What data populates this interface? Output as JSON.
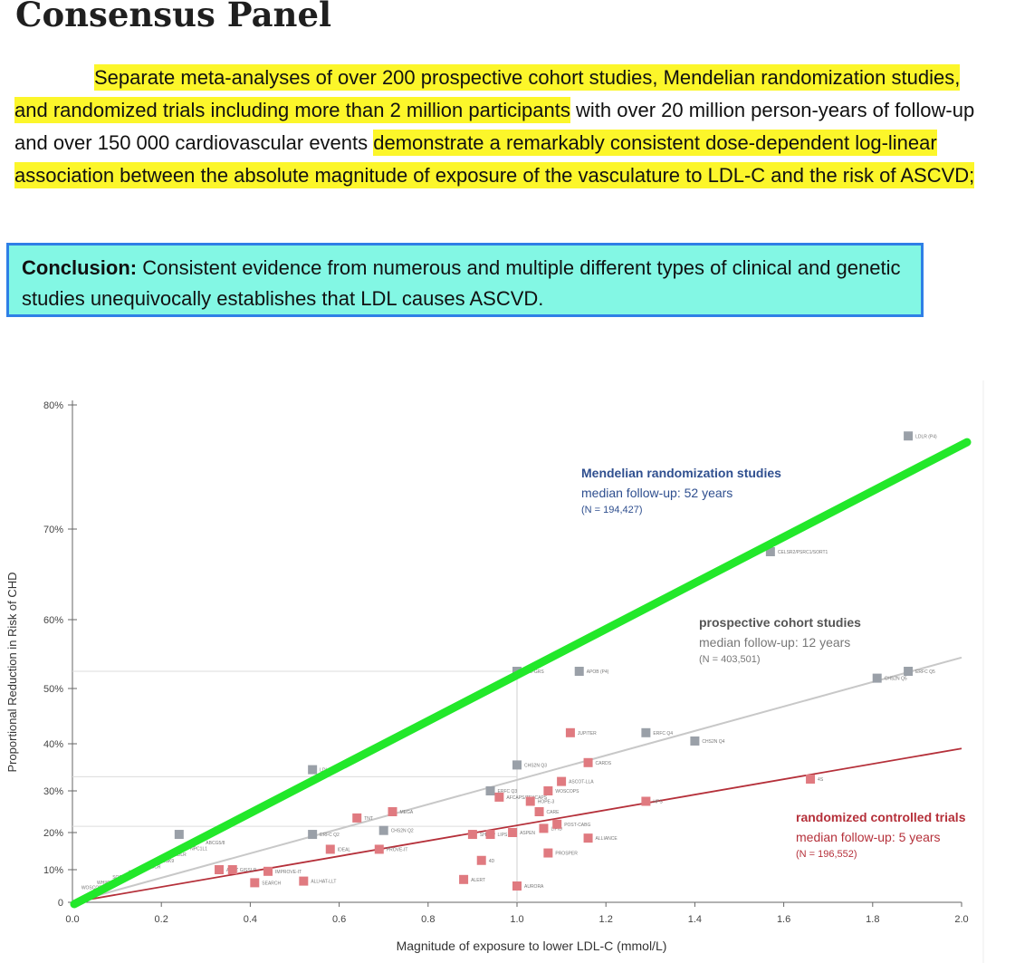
{
  "title": "Consensus Panel",
  "paragraph": {
    "seg1": "Separate meta-analyses of over 200 prospective cohort studies, Mendelian randomization studies, and randomized trials including more than 2 million participants",
    "seg2": " with over 20 million person-years of follow-up and over 150 000 cardiovascular events ",
    "seg3": "demonstrate a remarkably consistent dose-dependent log-linear association between the absolute magnitude of exposure of the vasculature to LDL-C and the risk of ASCVD;"
  },
  "conclusion": {
    "label": "Conclusion:",
    "text": " Consistent evidence from numerous and multiple different types of clinical and genetic studies unequivocally establishes that LDL causes ASCVD."
  },
  "colors": {
    "highlight": "#fcf62a",
    "box_bg": "#83f7e4",
    "box_border": "#2f7fe6",
    "green_line": "#22e82a",
    "mendelian": "#2f4f8f",
    "cohort": "#a8a8a8",
    "rct": "#b5303a",
    "rct_point": "#e07a80",
    "grey_point": "#9aa0a8"
  },
  "chart_data": {
    "type": "scatter",
    "xlabel": "Magnitude of exposure to lower LDL-C (mmol/L)",
    "ylabel": "Proportional Reduction in Risk of CHD",
    "xlim": [
      0,
      2.0
    ],
    "ylim": [
      0,
      80
    ],
    "x_ticks": [
      0.0,
      0.2,
      0.4,
      0.6,
      0.8,
      1.0,
      1.2,
      1.4,
      1.6,
      1.8,
      2.0
    ],
    "x_tick_labels": [
      "0.0",
      "0.2",
      "0.4",
      "0.6",
      "0.8",
      "1.0",
      "1.2",
      "1.4",
      "1.6",
      "1.8",
      "2.0"
    ],
    "y_ticks": [
      0,
      10,
      20,
      30,
      40,
      50,
      60,
      70,
      80
    ],
    "y_tick_labels": [
      "0",
      "10%",
      "20%",
      "30%",
      "40%",
      "50%",
      "60%",
      "70%",
      "80%"
    ],
    "series": [
      {
        "name": "Mendelian randomization studies",
        "line_label": "Mendelian randomization studies",
        "line_sub1": "median follow-up: 52 years",
        "line_sub2": "(N = 194,427)",
        "trend": [
          [
            0.0,
            0.0
          ],
          [
            2.0,
            77.0
          ]
        ],
        "points": [
          {
            "x": 0.24,
            "y": 19.5,
            "label": ""
          },
          {
            "x": 0.54,
            "y": 34.5,
            "label": "LDL-GRS"
          },
          {
            "x": 1.0,
            "y": 52.5,
            "label": "LDL-GRS"
          },
          {
            "x": 1.57,
            "y": 67.5,
            "label": "CELSR2/PSRC1/SORT1"
          },
          {
            "x": 1.88,
            "y": 77.5,
            "label": "LDLR (P4)"
          }
        ]
      },
      {
        "name": "prospective cohort studies",
        "line_label": "prospective cohort studies",
        "line_sub1": "median follow-up: 12 years",
        "line_sub2": "(N = 403,501)",
        "trend": [
          [
            0.0,
            0.0
          ],
          [
            2.0,
            54.5
          ]
        ],
        "points": [
          {
            "x": 0.54,
            "y": 19.5,
            "label": "ERFC Q2"
          },
          {
            "x": 0.7,
            "y": 20.5,
            "label": "CHS2N Q2"
          },
          {
            "x": 0.94,
            "y": 30.0,
            "label": "ERFC Q3"
          },
          {
            "x": 1.0,
            "y": 35.5,
            "label": "CHS2N Q3"
          },
          {
            "x": 1.14,
            "y": 52.5,
            "label": "APOB (P4)"
          },
          {
            "x": 1.29,
            "y": 42.0,
            "label": "ERFC Q4"
          },
          {
            "x": 1.4,
            "y": 40.5,
            "label": "CHS2N Q4"
          },
          {
            "x": 1.81,
            "y": 51.5,
            "label": "CHS2N Q5"
          },
          {
            "x": 1.88,
            "y": 52.5,
            "label": "ERFC Q5"
          }
        ]
      },
      {
        "name": "randomized controlled trials",
        "line_label": "randomized controlled trials",
        "line_sub1": "median follow-up: 5 years",
        "line_sub2": "(N = 196,552)",
        "trend": [
          [
            0.0,
            0.0
          ],
          [
            2.0,
            39.0
          ]
        ],
        "points": [
          {
            "x": 0.33,
            "y": 10.0,
            "label": "A to Z"
          },
          {
            "x": 0.36,
            "y": 10.0,
            "label": "GISSI-P"
          },
          {
            "x": 0.41,
            "y": 6.0,
            "label": "SEARCH"
          },
          {
            "x": 0.44,
            "y": 9.5,
            "label": "IMPROVE-IT"
          },
          {
            "x": 0.52,
            "y": 6.5,
            "label": "ALLHAT-LLT"
          },
          {
            "x": 0.58,
            "y": 15.5,
            "label": "IDEAL"
          },
          {
            "x": 0.64,
            "y": 23.5,
            "label": "TNT"
          },
          {
            "x": 0.69,
            "y": 15.5,
            "label": "PROVE-IT"
          },
          {
            "x": 0.72,
            "y": 25.0,
            "label": "MEGA"
          },
          {
            "x": 0.88,
            "y": 7.0,
            "label": "ALERT"
          },
          {
            "x": 0.9,
            "y": 19.5,
            "label": "SHARP"
          },
          {
            "x": 0.92,
            "y": 12.5,
            "label": "4D"
          },
          {
            "x": 0.94,
            "y": 19.5,
            "label": "LIPS"
          },
          {
            "x": 0.96,
            "y": 28.5,
            "label": "AFCAPS/TEXCAPS"
          },
          {
            "x": 0.99,
            "y": 20.0,
            "label": "ASPEN"
          },
          {
            "x": 1.0,
            "y": 5.0,
            "label": "AURORA"
          },
          {
            "x": 1.03,
            "y": 27.5,
            "label": "HOPE-3"
          },
          {
            "x": 1.05,
            "y": 25.0,
            "label": "CARE"
          },
          {
            "x": 1.06,
            "y": 21.0,
            "label": "LIPID"
          },
          {
            "x": 1.07,
            "y": 30.0,
            "label": "WOSCOPS"
          },
          {
            "x": 1.07,
            "y": 14.5,
            "label": "PROSPER"
          },
          {
            "x": 1.09,
            "y": 22.0,
            "label": "POST-CABG"
          },
          {
            "x": 1.1,
            "y": 32.0,
            "label": "ASCOT-LLA"
          },
          {
            "x": 1.12,
            "y": 42.0,
            "label": "JUPITER"
          },
          {
            "x": 1.16,
            "y": 36.0,
            "label": "CARDS"
          },
          {
            "x": 1.16,
            "y": 18.5,
            "label": "ALLIANCE"
          },
          {
            "x": 1.29,
            "y": 27.5,
            "label": "HPS"
          },
          {
            "x": 1.66,
            "y": 32.5,
            "label": "4S"
          }
        ]
      }
    ],
    "small_labels": [
      "WOSCOPS",
      "WHI/COX",
      "SOSY",
      "APOE",
      "HMGCR",
      "PCSK9",
      "LDLR",
      "NPC1L1",
      "ABCG5/8"
    ]
  }
}
